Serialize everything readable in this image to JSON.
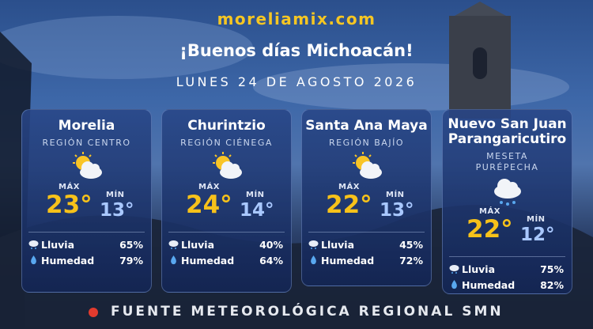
{
  "header": {
    "site": "moreliamix.com",
    "greeting": "¡Buenos días Michoacán!",
    "date": "LUNES 24 DE AGOSTO 2026"
  },
  "cards": [
    {
      "name_lines": [
        "Morelia"
      ],
      "region_lines": [
        "REGIÓN CENTRO"
      ],
      "max_label": "MÁX",
      "max": "23°",
      "min_label": "MÍN",
      "min": "13°",
      "rain_label": "Lluvia",
      "rain": "65%",
      "humidity_label": "Humedad",
      "humidity": "79%"
    },
    {
      "name_lines": [
        "Churintzio"
      ],
      "region_lines": [
        "REGIÓN CIÉNEGA"
      ],
      "max_label": "MÁX",
      "max": "24°",
      "min_label": "MÍN",
      "min": "14°",
      "rain_label": "Lluvia",
      "rain": "40%",
      "humidity_label": "Humedad",
      "humidity": "64%"
    },
    {
      "name_lines": [
        "Santa Ana Maya"
      ],
      "region_lines": [
        "REGIÓN BAJÍO"
      ],
      "max_label": "MÁX",
      "max": "22°",
      "min_label": "MÍN",
      "min": "13°",
      "rain_label": "Lluvia",
      "rain": "45%",
      "humidity_label": "Humedad",
      "humidity": "72%"
    },
    {
      "name_lines": [
        "Nuevo San Juan",
        "Parangaricutiro"
      ],
      "region_lines": [
        "MESETA",
        "PURÉPECHA"
      ],
      "max_label": "MÁX",
      "max": "22°",
      "min_label": "MÍN",
      "min": "12°",
      "rain_label": "Lluvia",
      "rain": "75%",
      "humidity_label": "Humedad",
      "humidity": "82%"
    }
  ],
  "footer": "FUENTE METEOROLÓGICA REGIONAL SMN"
}
